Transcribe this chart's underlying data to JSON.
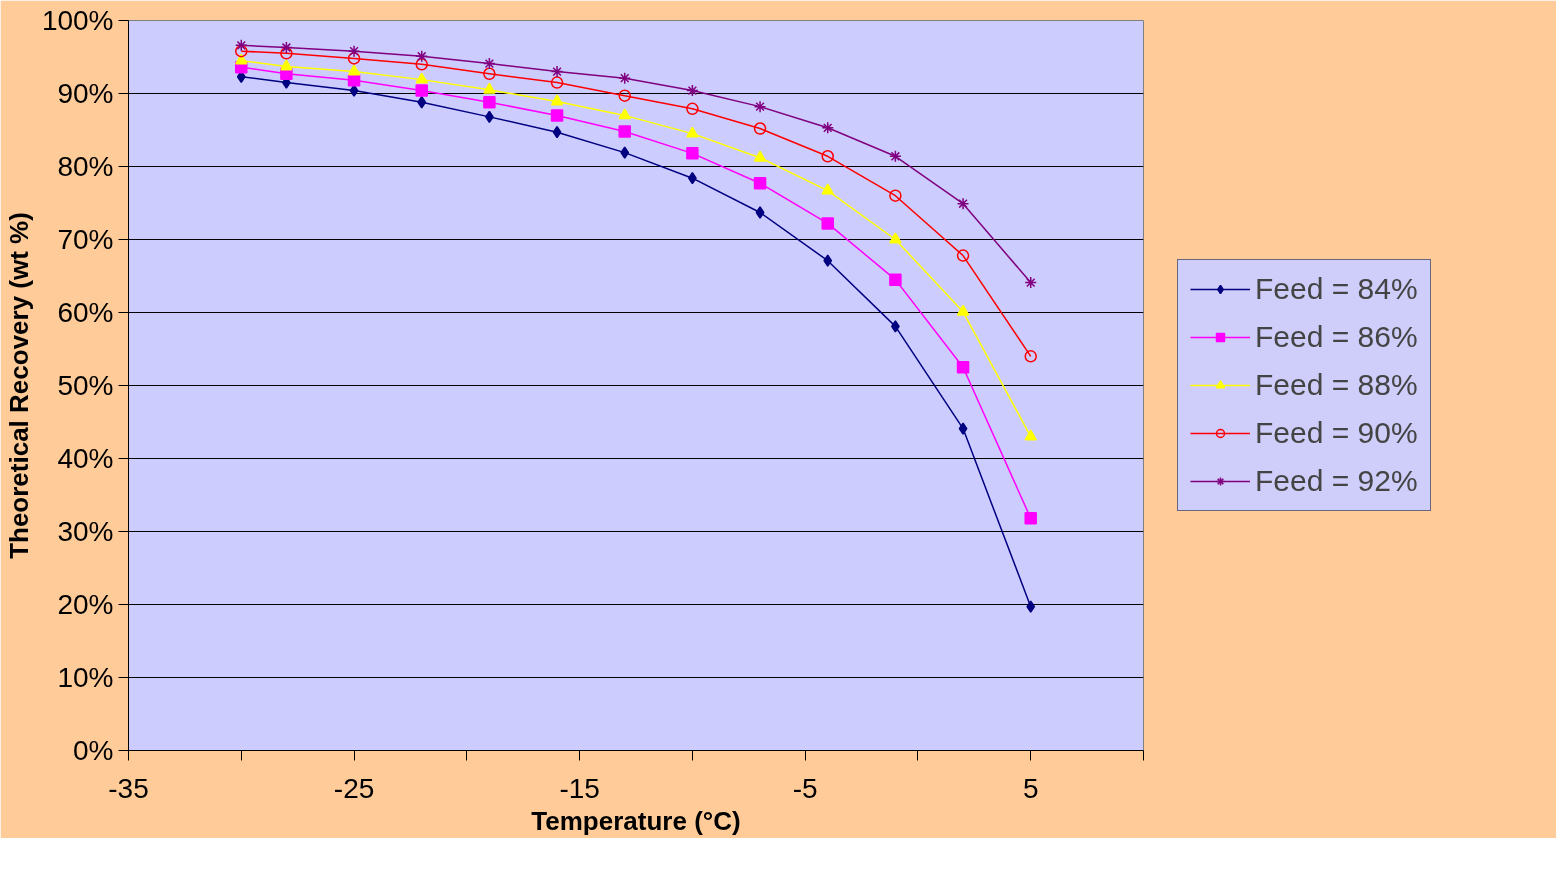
{
  "chart_data": {
    "type": "line",
    "xlabel": "Temperature (°C)",
    "ylabel": "Theoretical Recovery (wt %)",
    "x": [
      -30,
      -28,
      -25,
      -22,
      -19,
      -16,
      -13,
      -10,
      -7,
      -4,
      -1,
      2,
      5
    ],
    "series": [
      {
        "name": "Feed = 84%",
        "color": "#000080",
        "marker": "diamond",
        "values": [
          92.3,
          91.5,
          90.4,
          88.8,
          86.8,
          84.7,
          81.9,
          78.4,
          73.7,
          67.1,
          58.1,
          44.1,
          19.7
        ]
      },
      {
        "name": "Feed = 86%",
        "color": "#ff00ff",
        "marker": "square",
        "values": [
          93.6,
          92.7,
          91.8,
          90.4,
          88.8,
          87.0,
          84.8,
          81.8,
          77.7,
          72.2,
          64.5,
          52.5,
          31.8
        ]
      },
      {
        "name": "Feed = 88%",
        "color": "#ffff00",
        "marker": "triangle",
        "values": [
          94.5,
          93.7,
          93.0,
          91.9,
          90.5,
          88.9,
          87.0,
          84.5,
          81.2,
          76.7,
          70.0,
          60.1,
          43.0
        ]
      },
      {
        "name": "Feed = 90%",
        "color": "#ff0000",
        "marker": "circle",
        "values": [
          95.8,
          95.5,
          94.8,
          94.0,
          92.7,
          91.5,
          89.7,
          87.9,
          85.2,
          81.4,
          76.0,
          67.8,
          54.0
        ]
      },
      {
        "name": "Feed = 92%",
        "color": "#800080",
        "marker": "cross",
        "values": [
          96.6,
          96.3,
          95.8,
          95.1,
          94.1,
          93.0,
          92.1,
          90.4,
          88.2,
          85.3,
          81.4,
          74.9,
          64.1
        ]
      }
    ],
    "xlim": [
      -35,
      10
    ],
    "xticks": [
      -35,
      {
        "value": -30,
        "label": null
      },
      -25,
      {
        "value": -20,
        "label": null
      },
      -15,
      {
        "value": -10,
        "label": null
      },
      -5,
      {
        "value": 0,
        "label": null
      },
      5,
      {
        "value": 10,
        "label": null
      }
    ],
    "ylim": [
      0,
      100
    ],
    "yticks": [
      {
        "value": 0,
        "label": "0%"
      },
      {
        "value": 10,
        "label": "10%"
      },
      {
        "value": 20,
        "label": "20%"
      },
      {
        "value": 30,
        "label": "30%"
      },
      {
        "value": 40,
        "label": "40%"
      },
      {
        "value": 50,
        "label": "50%"
      },
      {
        "value": 60,
        "label": "60%"
      },
      {
        "value": 70,
        "label": "70%"
      },
      {
        "value": 80,
        "label": "80%"
      },
      {
        "value": 90,
        "label": "90%"
      },
      {
        "value": 100,
        "label": "100%"
      }
    ],
    "grid": "y",
    "legend": "right",
    "line_style": "solid"
  }
}
